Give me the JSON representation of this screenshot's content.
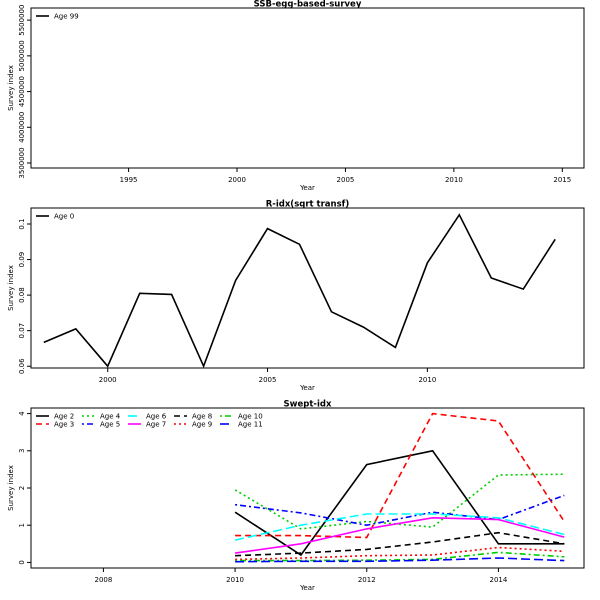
{
  "chart_data": [
    {
      "type": "line",
      "title": "SSB-egg-based-survey",
      "xlabel": "Year",
      "ylabel": "Survey index",
      "xlim": [
        1990.5,
        2016
      ],
      "ylim": [
        3430000,
        5670000
      ],
      "xticks": [
        1995,
        2000,
        2005,
        2010,
        2015
      ],
      "yticks": [
        3500000,
        4000000,
        4500000,
        5000000,
        5500000
      ],
      "legend_position": "top-left",
      "series": [
        {
          "name": "Age 99",
          "color": "#000000",
          "dash": "solid",
          "points": []
        }
      ]
    },
    {
      "type": "line",
      "title": "R-idx(sqrt transf)",
      "xlabel": "Year",
      "ylabel": "Survey index",
      "xlim": [
        1997.6,
        2014.9
      ],
      "ylim": [
        0.0595,
        0.1045
      ],
      "xticks": [
        2000,
        2005,
        2010
      ],
      "yticks": [
        0.06,
        0.07,
        0.08,
        0.09,
        0.1
      ],
      "legend_position": "top-left",
      "series": [
        {
          "name": "Age 0",
          "color": "#000000",
          "dash": "solid",
          "points": [
            [
              1998,
              0.0667
            ],
            [
              1999,
              0.0705
            ],
            [
              2000,
              0.06
            ],
            [
              2001,
              0.0805
            ],
            [
              2002,
              0.0802
            ],
            [
              2003,
              0.06
            ],
            [
              2004,
              0.0841
            ],
            [
              2005,
              0.0987
            ],
            [
              2006,
              0.0943
            ],
            [
              2007,
              0.0753
            ],
            [
              2008,
              0.071
            ],
            [
              2009,
              0.0653
            ],
            [
              2010,
              0.0891
            ],
            [
              2011,
              0.1026
            ],
            [
              2012,
              0.0848
            ],
            [
              2013,
              0.0817
            ],
            [
              2014,
              0.0957
            ]
          ]
        }
      ]
    },
    {
      "type": "line",
      "title": "Swept-idx",
      "xlabel": "Year",
      "ylabel": "Survey index",
      "xlim": [
        2006.9,
        2015.3
      ],
      "ylim": [
        -0.15,
        4.15
      ],
      "xticks": [
        2008,
        2010,
        2012,
        2014
      ],
      "yticks": [
        0,
        1,
        2,
        3,
        4
      ],
      "legend_position": "top-left",
      "series": [
        {
          "name": "Age 2",
          "color": "#000000",
          "dash": "solid",
          "points": [
            [
              2010,
              1.35
            ],
            [
              2011,
              0.2
            ],
            [
              2012,
              2.63
            ],
            [
              2013,
              3.0
            ],
            [
              2014,
              0.5
            ],
            [
              2015,
              0.5
            ]
          ]
        },
        {
          "name": "Age 3",
          "color": "#ff0000",
          "dash": "dashed",
          "points": [
            [
              2010,
              0.72
            ],
            [
              2011,
              0.72
            ],
            [
              2012,
              0.67
            ],
            [
              2013,
              4.0
            ],
            [
              2014,
              3.8
            ],
            [
              2015,
              1.1
            ]
          ]
        },
        {
          "name": "Age 4",
          "color": "#00cd00",
          "dash": "dotted",
          "points": [
            [
              2010,
              1.95
            ],
            [
              2011,
              0.9
            ],
            [
              2012,
              1.1
            ],
            [
              2013,
              0.95
            ],
            [
              2014,
              2.35
            ],
            [
              2015,
              2.37
            ]
          ]
        },
        {
          "name": "Age 5",
          "color": "#0000ff",
          "dash": "dotdash",
          "points": [
            [
              2010,
              1.55
            ],
            [
              2011,
              1.33
            ],
            [
              2012,
              1.0
            ],
            [
              2013,
              1.35
            ],
            [
              2014,
              1.15
            ],
            [
              2015,
              1.8
            ]
          ]
        },
        {
          "name": "Age 6",
          "color": "#00ffff",
          "dash": "longdash",
          "points": [
            [
              2010,
              0.6
            ],
            [
              2011,
              1.0
            ],
            [
              2012,
              1.3
            ],
            [
              2013,
              1.3
            ],
            [
              2014,
              1.2
            ],
            [
              2015,
              0.75
            ]
          ]
        },
        {
          "name": "Age 7",
          "color": "#ff00ff",
          "dash": "solid",
          "points": [
            [
              2010,
              0.25
            ],
            [
              2011,
              0.5
            ],
            [
              2012,
              0.9
            ],
            [
              2013,
              1.2
            ],
            [
              2014,
              1.15
            ],
            [
              2015,
              0.68
            ]
          ]
        },
        {
          "name": "Age 8",
          "color": "#000000",
          "dash": "dashed",
          "points": [
            [
              2010,
              0.18
            ],
            [
              2011,
              0.25
            ],
            [
              2012,
              0.35
            ],
            [
              2013,
              0.55
            ],
            [
              2014,
              0.8
            ],
            [
              2015,
              0.5
            ]
          ]
        },
        {
          "name": "Age 9",
          "color": "#ff0000",
          "dash": "dotted",
          "points": [
            [
              2010,
              0.08
            ],
            [
              2011,
              0.12
            ],
            [
              2012,
              0.18
            ],
            [
              2013,
              0.2
            ],
            [
              2014,
              0.4
            ],
            [
              2015,
              0.3
            ]
          ]
        },
        {
          "name": "Age 10",
          "color": "#00cd00",
          "dash": "dotdash",
          "points": [
            [
              2010,
              0.05
            ],
            [
              2011,
              0.05
            ],
            [
              2012,
              0.06
            ],
            [
              2013,
              0.08
            ],
            [
              2014,
              0.27
            ],
            [
              2015,
              0.15
            ]
          ]
        },
        {
          "name": "Age 11",
          "color": "#0000ff",
          "dash": "longdash",
          "points": [
            [
              2010,
              0.02
            ],
            [
              2011,
              0.03
            ],
            [
              2012,
              0.03
            ],
            [
              2013,
              0.06
            ],
            [
              2014,
              0.12
            ],
            [
              2015,
              0.05
            ]
          ]
        }
      ]
    }
  ]
}
